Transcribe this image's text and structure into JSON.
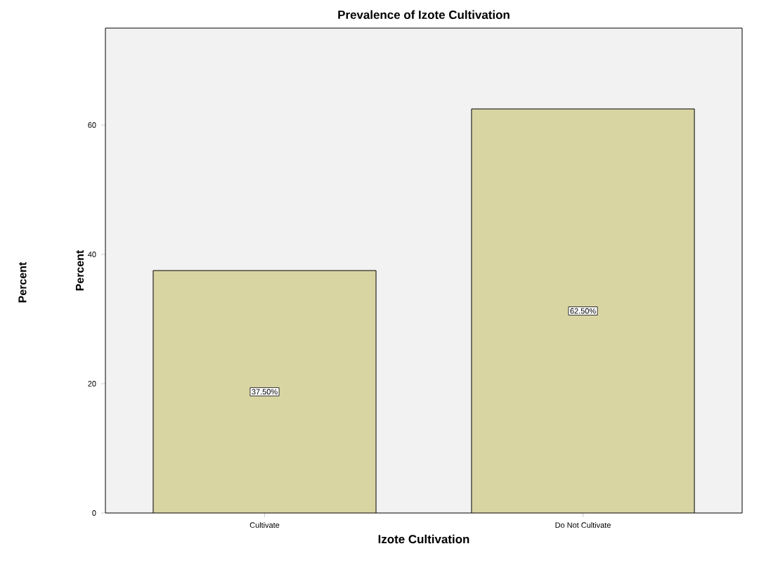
{
  "chart_data": {
    "type": "bar",
    "title": "Prevalence of Izote Cultivation",
    "xlabel": "Izote Cultivation",
    "ylabel": "Percent",
    "annotations": [
      "Percent"
    ],
    "categories": [
      "Cultivate",
      "Do Not Cultivate"
    ],
    "values": [
      37.5,
      62.5
    ],
    "value_labels": [
      "37.50%",
      "62.50%"
    ],
    "color": "#d9d5a3",
    "ylim": [
      0,
      75
    ],
    "yticks": [
      0,
      20,
      40,
      60
    ],
    "grid": false
  }
}
